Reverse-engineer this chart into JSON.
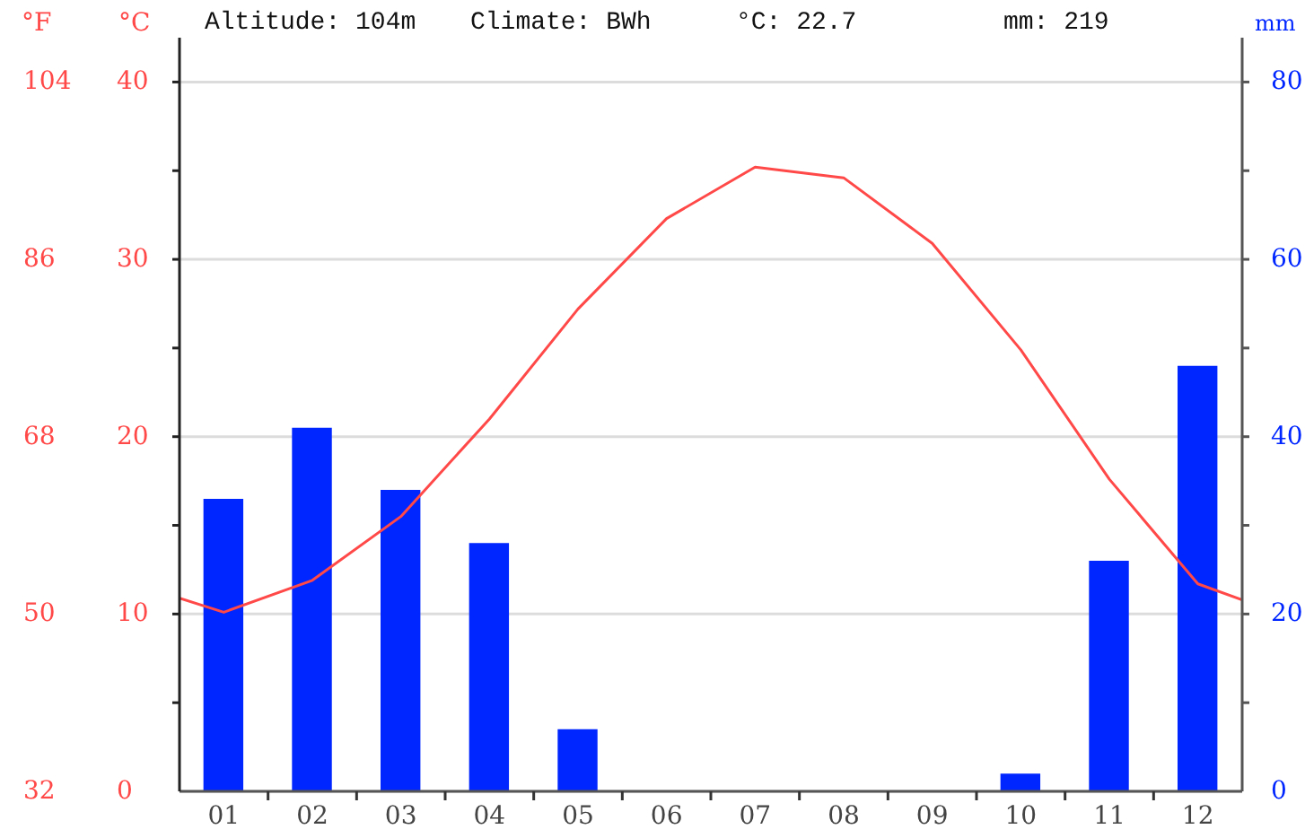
{
  "chart_data": {
    "type": "bar",
    "annotations": [
      "Altitude: 104m",
      "Climate: BWh",
      "°C: 22.7",
      "mm: 219"
    ],
    "ylabel": "°C",
    "y2label": "mm",
    "y3label": "°F",
    "x": [
      1,
      2,
      3,
      4,
      5,
      6,
      7,
      8,
      9,
      10,
      11,
      12
    ],
    "xlim": [
      0.5,
      12.5
    ],
    "xticks": [
      {
        "value": 1,
        "label": "01"
      },
      {
        "value": 1.5,
        "label": null
      },
      {
        "value": 2,
        "label": "02"
      },
      {
        "value": 2.5,
        "label": null
      },
      {
        "value": 3,
        "label": "03"
      },
      {
        "value": 3.5,
        "label": null
      },
      {
        "value": 4,
        "label": "04"
      },
      {
        "value": 4.5,
        "label": null
      },
      {
        "value": 5,
        "label": "05"
      },
      {
        "value": 5.5,
        "label": null
      },
      {
        "value": 6,
        "label": "06"
      },
      {
        "value": 6.5,
        "label": null
      },
      {
        "value": 7,
        "label": "07"
      },
      {
        "value": 7.5,
        "label": null
      },
      {
        "value": 8,
        "label": "08"
      },
      {
        "value": 8.5,
        "label": null
      },
      {
        "value": 9,
        "label": "09"
      },
      {
        "value": 9.5,
        "label": null
      },
      {
        "value": 10,
        "label": "10"
      },
      {
        "value": 10.5,
        "label": null
      },
      {
        "value": 11,
        "label": "11"
      },
      {
        "value": 11.5,
        "label": null
      },
      {
        "value": 12,
        "label": "12"
      }
    ],
    "series": [
      {
        "axis": "y2",
        "color": "#0026ff",
        "values": [
          33,
          41,
          34,
          28,
          7,
          0,
          0,
          0,
          0,
          2,
          26,
          48
        ]
      },
      {
        "type": "line",
        "axis": "y",
        "color": "#ff4848",
        "x": [
          0.5,
          1,
          2,
          3,
          4,
          5,
          6,
          7,
          8,
          9,
          10,
          11,
          12,
          12.5
        ],
        "values": [
          10.9,
          10.1,
          11.9,
          15.5,
          21.0,
          27.2,
          32.3,
          35.2,
          34.6,
          30.9,
          24.9,
          17.6,
          11.7,
          10.8
        ]
      }
    ],
    "ylim": [
      0,
      42.5
    ],
    "yticks": [
      0,
      {
        "value": 5,
        "label": null
      },
      10,
      {
        "value": 15,
        "label": null
      },
      20,
      {
        "value": 25,
        "label": null
      },
      30,
      {
        "value": 35,
        "label": null
      },
      40
    ],
    "y2lim": [
      0,
      85
    ],
    "y2ticks": [
      0,
      {
        "value": 10,
        "label": null
      },
      20,
      {
        "value": 30,
        "label": null
      },
      40,
      {
        "value": 50,
        "label": null
      },
      60,
      {
        "value": 70,
        "label": null
      },
      80
    ],
    "y3lim": [
      32,
      108.5
    ],
    "y3ticks": [
      32,
      50,
      68,
      86,
      104
    ],
    "grid": "y"
  }
}
